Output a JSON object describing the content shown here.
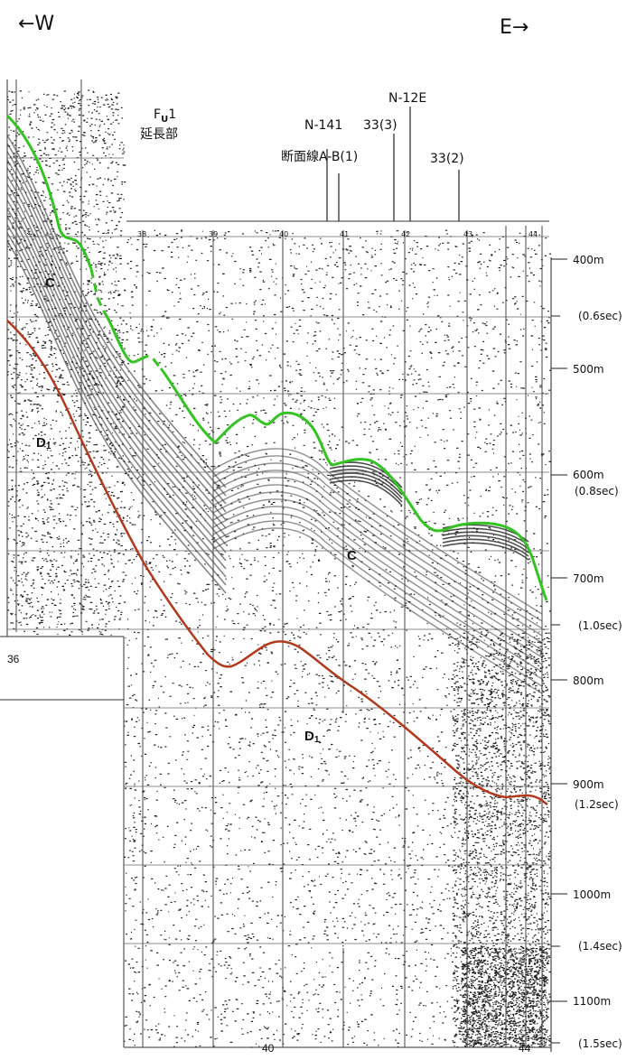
{
  "direction": {
    "west": "←W",
    "east": "E→"
  },
  "unit": {
    "name_main": "F",
    "name_sub": "U",
    "name_num": "1",
    "label": "延長部"
  },
  "line_labels": {
    "n141": "N-141",
    "l33_3": "33(3)",
    "n12e": "N-12E",
    "section": "断面線A-B(1)",
    "l33_2": "33(2)"
  },
  "depth_scale": [
    {
      "label": "400m"
    },
    {
      "label": "(0.6sec)"
    },
    {
      "label": "500m"
    },
    {
      "label": "600m"
    },
    {
      "label": "(0.8sec)"
    },
    {
      "label": "700m"
    },
    {
      "label": "(1.0sec)"
    },
    {
      "label": "800m"
    },
    {
      "label": "900m"
    },
    {
      "label": "(1.2sec)"
    },
    {
      "label": "1000m"
    },
    {
      "label": "(1.4sec)"
    },
    {
      "label": "1100m"
    },
    {
      "label": "(1.5sec)"
    }
  ],
  "horizons": {
    "c_upper": "C",
    "c_lower": "C",
    "d1_upper_main": "D",
    "d1_upper_sub": "1",
    "d1_lower_main": "D",
    "d1_lower_sub": "1"
  },
  "colors": {
    "horizon_c": "#33c421",
    "horizon_d1": "#b3391d",
    "noise": "#222222"
  },
  "bottom_labels": {
    "b36": "36",
    "b40": "40",
    "b44": "44"
  },
  "record_ticks": {
    "t38": "38",
    "t39": "39",
    "t40": "40",
    "t41": "41",
    "t42": "42",
    "t43": "43",
    "t44": "44"
  }
}
